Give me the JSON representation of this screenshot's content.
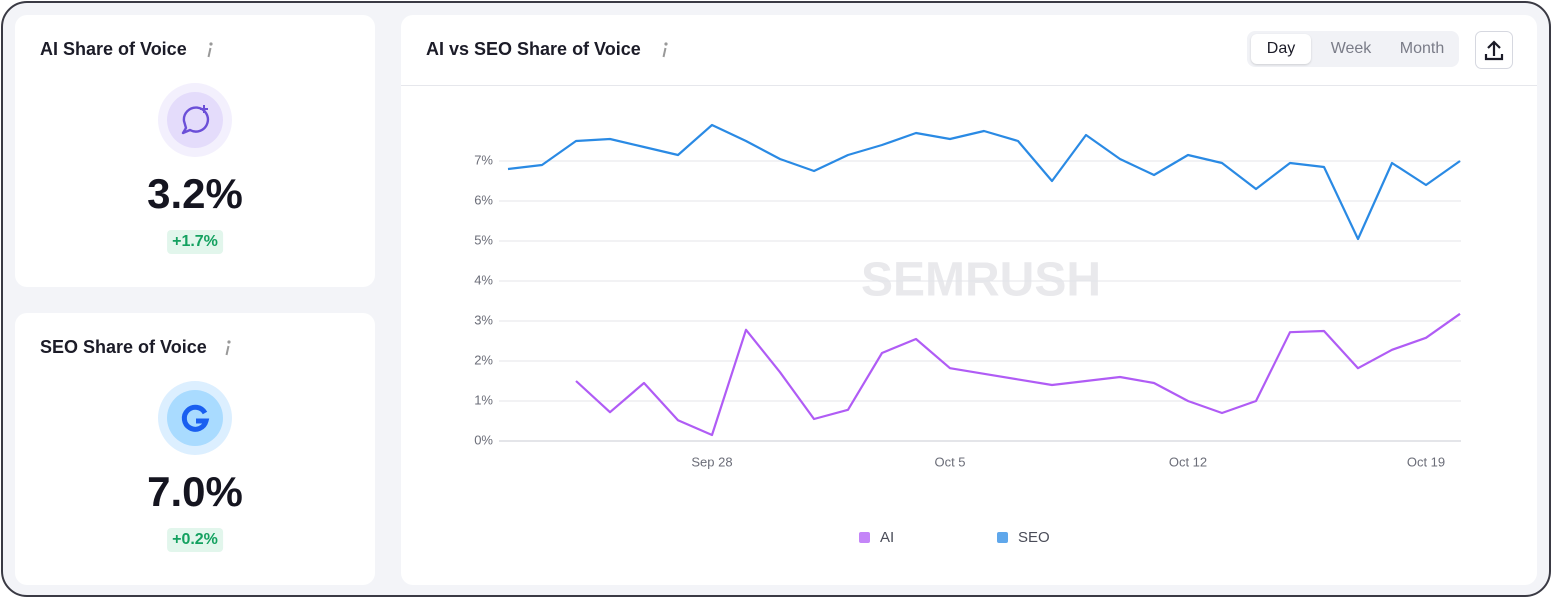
{
  "ai_card": {
    "title": "AI Share of Voice",
    "value": "3.2%",
    "change": "+1.7%"
  },
  "seo_card": {
    "title": "SEO Share of Voice",
    "value": "7.0%",
    "change": "+0.2%"
  },
  "period_buttons": [
    "Day",
    "Week",
    "Month"
  ],
  "chart_data": {
    "type": "line",
    "title": "AI vs SEO Share of Voice",
    "watermark": "SEMRUSH",
    "categories": [
      null,
      null,
      null,
      null,
      null,
      null,
      "Sep 28",
      null,
      null,
      null,
      null,
      null,
      null,
      "Oct 5",
      null,
      null,
      null,
      null,
      null,
      null,
      "Oct 12",
      null,
      null,
      null,
      null,
      null,
      null,
      "Oct 19",
      null
    ],
    "series": [
      {
        "name": "AI",
        "color": "#b05cf5",
        "values": [
          null,
          null,
          1.5,
          0.72,
          1.45,
          0.52,
          0.15,
          2.78,
          1.72,
          0.55,
          0.78,
          2.2,
          2.55,
          1.82,
          1.68,
          1.54,
          1.4,
          1.5,
          1.6,
          1.45,
          1.0,
          0.7,
          1.0,
          2.72,
          2.75,
          1.82,
          2.28,
          2.58,
          3.18
        ]
      },
      {
        "name": "SEO",
        "color": "#2a8ae4",
        "values": [
          6.8,
          6.9,
          7.5,
          7.55,
          7.35,
          7.15,
          7.9,
          7.5,
          7.05,
          6.75,
          7.15,
          7.4,
          7.7,
          7.55,
          7.75,
          7.5,
          6.5,
          7.65,
          7.05,
          6.65,
          7.15,
          6.95,
          6.3,
          6.95,
          6.85,
          5.05,
          6.95,
          6.4,
          7.0
        ]
      }
    ],
    "ylim": [
      0,
      8
    ],
    "yticks": [
      {
        "value": 0,
        "label": "0%"
      },
      {
        "value": 1,
        "label": "1%"
      },
      {
        "value": 2,
        "label": "2%"
      },
      {
        "value": 3,
        "label": "3%"
      },
      {
        "value": 4,
        "label": "4%"
      },
      {
        "value": 5,
        "label": "5%"
      },
      {
        "value": 6,
        "label": "6%"
      },
      {
        "value": 7,
        "label": "7%"
      }
    ],
    "grid": true
  }
}
